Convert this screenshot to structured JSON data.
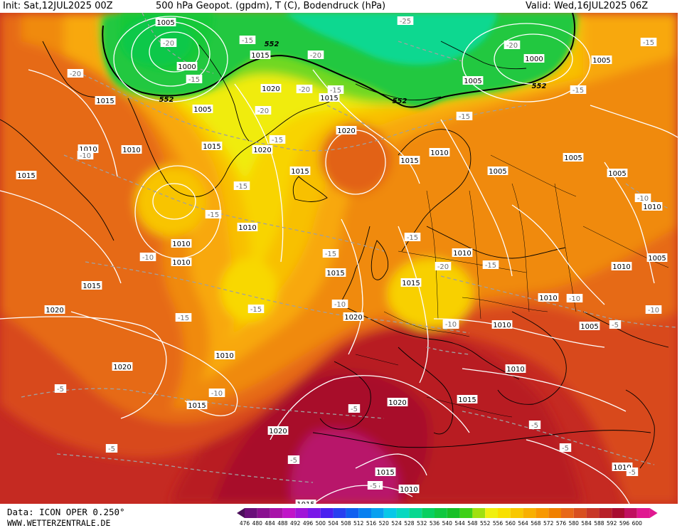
{
  "header": {
    "init": "Init: Sat,12JUL2025 00Z",
    "title": "500 hPa Geopot. (gpdm), T (C), Bodendruck (hPa)",
    "valid": "Valid: Wed,16JUL2025 06Z"
  },
  "footer": {
    "data_source": "Data: ICON OPER 0.250°",
    "site": "WWW.WETTERZENTRALE.DE"
  },
  "legend": {
    "values": [
      "476",
      "480",
      "484",
      "488",
      "492",
      "496",
      "500",
      "504",
      "508",
      "512",
      "516",
      "520",
      "524",
      "528",
      "532",
      "536",
      "540",
      "544",
      "548",
      "552",
      "556",
      "560",
      "564",
      "568",
      "572",
      "576",
      "580",
      "584",
      "588",
      "592",
      "596",
      "600"
    ],
    "colors": [
      "#4b0f5a",
      "#6a0f7a",
      "#8a1090",
      "#a812a8",
      "#c014c8",
      "#a015d8",
      "#7a18e8",
      "#4a20f0",
      "#2840f0",
      "#1060f0",
      "#0880f0",
      "#08a0f0",
      "#08c8e8",
      "#08d8c0",
      "#08d890",
      "#08d060",
      "#10c840",
      "#18c028",
      "#40d018",
      "#a0e010",
      "#f0f010",
      "#f8e000",
      "#f8c800",
      "#f8b000",
      "#f89800",
      "#f08000",
      "#e86818",
      "#d85020",
      "#c83828",
      "#b82028",
      "#a80c30",
      "#c01060",
      "#e01890"
    ],
    "colors_note": ""
  },
  "map_labels": {
    "pressure": [
      {
        "t": "1005"
      },
      {
        "t": "1000"
      },
      {
        "t": "1005"
      },
      {
        "t": "1015"
      },
      {
        "t": "1015"
      },
      {
        "t": "1020"
      },
      {
        "t": "1015"
      },
      {
        "t": "1015"
      },
      {
        "t": "1020"
      },
      {
        "t": "1010"
      },
      {
        "t": "1010"
      },
      {
        "t": "1015"
      },
      {
        "t": "1015"
      },
      {
        "t": "1020"
      },
      {
        "t": "1015"
      },
      {
        "t": "1010"
      },
      {
        "t": "1005"
      },
      {
        "t": "1005"
      },
      {
        "t": "1005"
      },
      {
        "t": "1000"
      },
      {
        "t": "1005"
      },
      {
        "t": "1005"
      },
      {
        "t": "1010"
      },
      {
        "t": "1005"
      },
      {
        "t": "1010"
      },
      {
        "t": "1010"
      },
      {
        "t": "1010"
      },
      {
        "t": "1015"
      },
      {
        "t": "1015"
      },
      {
        "t": "1020"
      },
      {
        "t": "1015"
      },
      {
        "t": "1010"
      },
      {
        "t": "1010"
      },
      {
        "t": "1010"
      },
      {
        "t": "1010"
      },
      {
        "t": "1005"
      },
      {
        "t": "1010"
      },
      {
        "t": "1015"
      },
      {
        "t": "1020"
      },
      {
        "t": "1020"
      },
      {
        "t": "1020"
      },
      {
        "t": "1010"
      },
      {
        "t": "1015"
      },
      {
        "t": "1020"
      },
      {
        "t": "1015"
      },
      {
        "t": "1010"
      },
      {
        "t": "1015"
      },
      {
        "t": "1010"
      }
    ],
    "temperature": [
      {
        "t": "-20"
      },
      {
        "t": "-20"
      },
      {
        "t": "-15"
      },
      {
        "t": "-15"
      },
      {
        "t": "-20"
      },
      {
        "t": "-20"
      },
      {
        "t": "-15"
      },
      {
        "t": "-20"
      },
      {
        "t": "-25"
      },
      {
        "t": "-15"
      },
      {
        "t": "-20"
      },
      {
        "t": "-15"
      },
      {
        "t": "-15"
      },
      {
        "t": "-15"
      },
      {
        "t": "-15"
      },
      {
        "t": "-15"
      },
      {
        "t": "-10"
      },
      {
        "t": "-15"
      },
      {
        "t": "-10"
      },
      {
        "t": "-15"
      },
      {
        "t": "-15"
      },
      {
        "t": "-10"
      },
      {
        "t": "-15"
      },
      {
        "t": "-20"
      },
      {
        "t": "-15"
      },
      {
        "t": "-15"
      },
      {
        "t": "-10"
      },
      {
        "t": "-10"
      },
      {
        "t": "-10"
      },
      {
        "t": "-10"
      },
      {
        "t": "-5"
      },
      {
        "t": "-5"
      },
      {
        "t": "-5"
      },
      {
        "t": "-5"
      },
      {
        "t": "-5"
      },
      {
        "t": "-5"
      },
      {
        "t": "-5"
      },
      {
        "t": "-5"
      },
      {
        "t": "-5"
      },
      {
        "t": "-10"
      },
      {
        "t": "-5"
      }
    ],
    "geopotential": [
      {
        "t": "552"
      },
      {
        "t": "552"
      },
      {
        "t": "552"
      },
      {
        "t": "552"
      }
    ]
  }
}
